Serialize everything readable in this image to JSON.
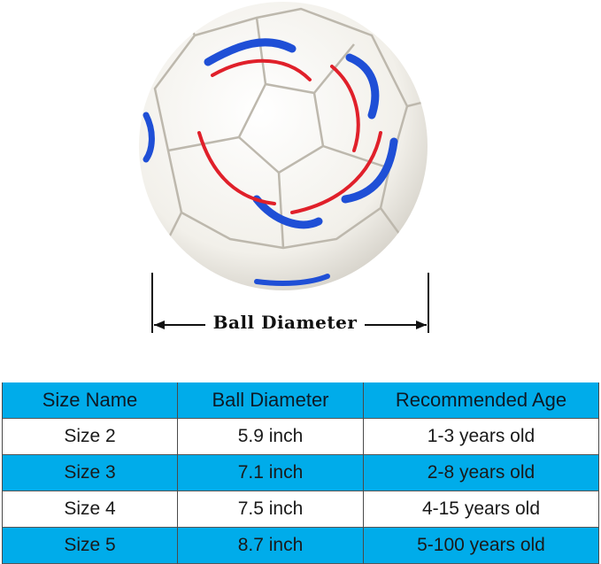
{
  "diagram": {
    "dimension_label": "Ball Diameter"
  },
  "colors": {
    "table_blue": "#00acea",
    "ball_blue": "#1f4fd6",
    "ball_red": "#e0202a"
  },
  "table": {
    "headers": [
      "Size Name",
      "Ball Diameter",
      "Recommended Age"
    ],
    "rows": [
      [
        "Size 2",
        "5.9 inch",
        "1-3 years old"
      ],
      [
        "Size 3",
        "7.1 inch",
        "2-8 years old"
      ],
      [
        "Size 4",
        "7.5 inch",
        "4-15 years old"
      ],
      [
        "Size 5",
        "8.7 inch",
        "5-100 years old"
      ]
    ]
  }
}
